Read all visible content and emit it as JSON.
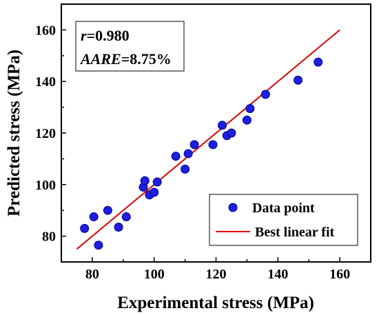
{
  "chart_data": {
    "type": "scatter",
    "xlabel": "Experimental stress (MPa)",
    "ylabel": "Predicted stress (MPa)",
    "xlim": [
      70,
      170
    ],
    "ylim": [
      70,
      170
    ],
    "x_ticks": [
      80,
      100,
      120,
      140,
      160
    ],
    "y_ticks": [
      80,
      100,
      120,
      140,
      160
    ],
    "grid": false,
    "legend_position": "bottom-right",
    "series": [
      {
        "name": "Data point",
        "kind": "scatter",
        "color": "#1f1fe0",
        "points": [
          [
            77.5,
            83
          ],
          [
            80.5,
            87.5
          ],
          [
            82,
            76.5
          ],
          [
            85,
            90
          ],
          [
            88.5,
            83.5
          ],
          [
            91,
            87.5
          ],
          [
            96.5,
            99
          ],
          [
            97,
            101.5
          ],
          [
            98.5,
            96
          ],
          [
            100,
            97
          ],
          [
            101,
            101
          ],
          [
            107,
            111
          ],
          [
            110,
            106
          ],
          [
            111,
            112
          ],
          [
            113,
            115.5
          ],
          [
            119,
            115.5
          ],
          [
            122,
            123
          ],
          [
            123.5,
            119
          ],
          [
            125,
            120
          ],
          [
            130,
            125
          ],
          [
            131,
            129.5
          ],
          [
            136,
            135
          ],
          [
            146.5,
            140.5
          ],
          [
            153,
            147.5
          ]
        ]
      },
      {
        "name": "Best linear fit",
        "kind": "line",
        "color": "#e00000",
        "points": [
          [
            75,
            75
          ],
          [
            160,
            160
          ]
        ]
      }
    ],
    "annotations": {
      "r_symbol": "r",
      "r_value": "=0.980",
      "aare_symbol": "AARE",
      "aare_value": "=8.75%"
    }
  }
}
